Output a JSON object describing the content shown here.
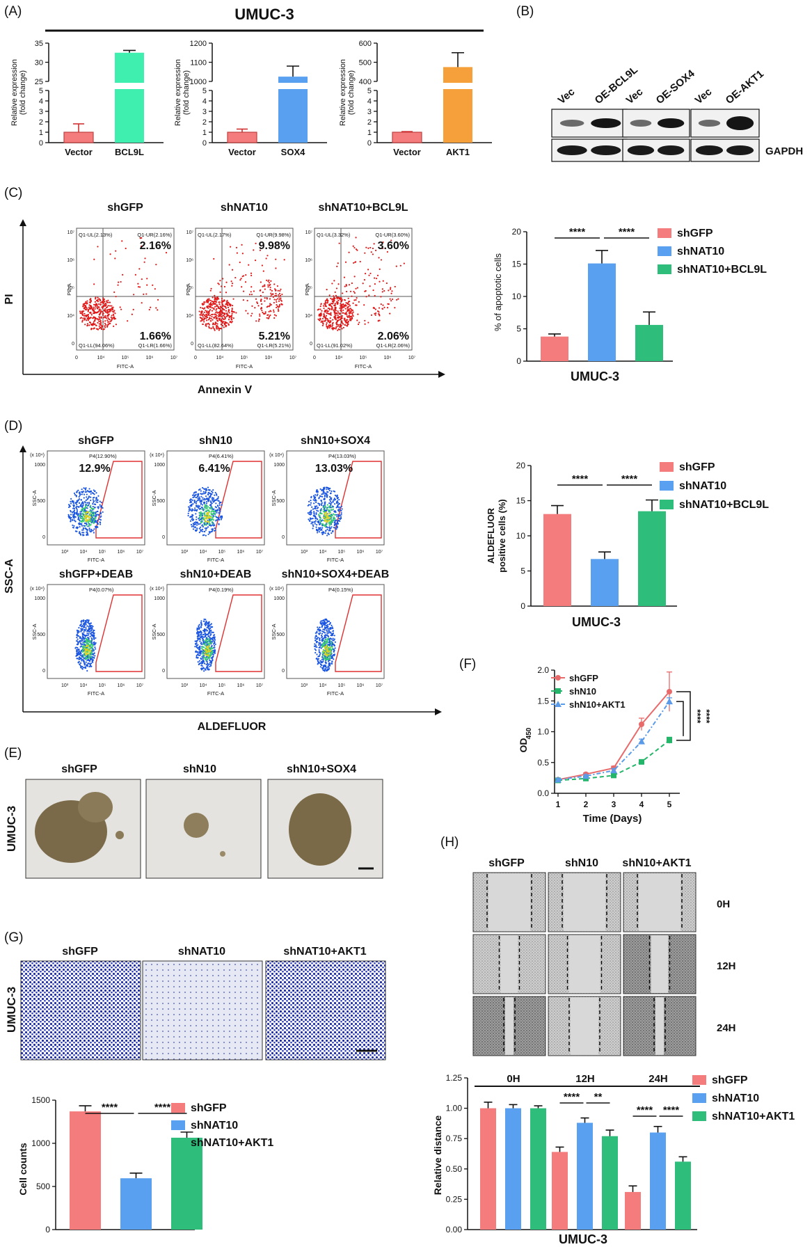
{
  "panels": {
    "A": "(A)",
    "B": "(B)",
    "C": "(C)",
    "D": "(D)",
    "E": "(E)",
    "F": "(F)",
    "G": "(G)",
    "H": "(H)"
  },
  "colors": {
    "red": "#f47c7c",
    "blue": "#5aa0f0",
    "green": "#2ebd7a",
    "mint": "#3fefb0",
    "orange": "#f5a03a",
    "dotred": "#e01818",
    "dotblue": "#1a55e0"
  },
  "panelA": {
    "title": "UMUC-3",
    "ylabel": "Relative expression\n(fold change)"
  },
  "panelB": {
    "labels": [
      "Vec",
      "OE-BCL9L",
      "Vec",
      "OE-SOX4",
      "Vec",
      "OE-AKT1"
    ],
    "gapdh": "GAPDH"
  },
  "panelC": {
    "samples": [
      "shGFP",
      "shNAT10",
      "shNAT10+BCL9L"
    ],
    "ur": [
      "2.16%",
      "9.98%",
      "3.60%"
    ],
    "lr": [
      "1.66%",
      "5.21%",
      "2.06%"
    ],
    "small_ul": [
      "Q1-UL(2.13%)",
      "Q1-UL(2.17%)",
      "Q1-UL(3.32%)"
    ],
    "small_ur": [
      "Q1-UR(2.16%)",
      "Q1-UR(9.98%)",
      "Q1-UR(3.60%)"
    ],
    "small_ll": [
      "Q1-LL(94.06%)",
      "Q1-LL(82.64%)",
      "Q1-LL(91.02%)"
    ],
    "small_lr": [
      "Q1-LR(1.66%)",
      "Q1-LR(5.21%)",
      "Q1-LR(2.06%)"
    ],
    "xaxis": "FITC-A",
    "yaxis": "PE-A",
    "xlabel": "Annexin V",
    "ylabel": "PI"
  },
  "panelD": {
    "top": [
      "shGFP",
      "shN10",
      "shN10+SOX4"
    ],
    "top_pct": [
      "12.9%",
      "6.41%",
      "13.03%"
    ],
    "top_small": [
      "P4(12.90%)",
      "P4(6.41%)",
      "P4(13.03%)"
    ],
    "bottom": [
      "shGFP+DEAB",
      "shN10+DEAB",
      "shN10+SOX4+DEAB"
    ],
    "bottom_small": [
      "P4(0.07%)",
      "P4(0.19%)",
      "P4(0.15%)"
    ],
    "xaxis": "FITC-A",
    "yaxis": "SSC-A",
    "exp": "(x 10⁴)",
    "xlabel": "ALDEFLUOR",
    "ylabel": "SSC-A"
  },
  "panelE": {
    "samples": [
      "shGFP",
      "shN10",
      "shN10+SOX4"
    ],
    "side": "UMUC-3"
  },
  "panelG": {
    "samples": [
      "shGFP",
      "shNAT10",
      "shNAT10+AKT1"
    ],
    "side": "UMUC-3"
  },
  "panelH": {
    "samples": [
      "shGFP",
      "shN10",
      "shN10+AKT1"
    ],
    "times": [
      "0H",
      "12H",
      "24H"
    ]
  },
  "chart_data": [
    {
      "id": "A1",
      "type": "bar",
      "categories": [
        "Vector",
        "BCL9L"
      ],
      "values": [
        1.0,
        32.5
      ],
      "errors": [
        0.8,
        0.6
      ],
      "ylabel": "Relative expression (fold change)",
      "broken_axis": true,
      "upper_ticks": [
        "25",
        "30",
        "35"
      ],
      "lower_ticks": [
        "0",
        "1",
        "2",
        "3",
        "4",
        "5"
      ],
      "colors": [
        "#f47c7c",
        "#3fefb0"
      ]
    },
    {
      "id": "A2",
      "type": "bar",
      "categories": [
        "Vector",
        "SOX4"
      ],
      "values": [
        1.0,
        1025
      ],
      "errors": [
        0.3,
        55
      ],
      "ylabel": "Relative expression (fold change)",
      "broken_axis": true,
      "upper_ticks": [
        "1000",
        "1100",
        "1200"
      ],
      "lower_ticks": [
        "0",
        "1",
        "2",
        "3",
        "4",
        "5"
      ],
      "colors": [
        "#f47c7c",
        "#5aa0f0"
      ]
    },
    {
      "id": "A3",
      "type": "bar",
      "categories": [
        "Vector",
        "AKT1"
      ],
      "values": [
        1.0,
        475
      ],
      "errors": [
        0.06,
        75
      ],
      "ylabel": "Relative expression (fold change)",
      "broken_axis": true,
      "upper_ticks": [
        "400",
        "500",
        "600"
      ],
      "lower_ticks": [
        "0",
        "1",
        "2",
        "3",
        "4",
        "5"
      ],
      "colors": [
        "#f47c7c",
        "#f5a03a"
      ]
    },
    {
      "id": "C",
      "type": "bar",
      "categories": [
        "shGFP",
        "shNAT10",
        "shNAT10+BCL9L"
      ],
      "values": [
        3.8,
        15.1,
        5.6
      ],
      "errors": [
        0.4,
        2.0,
        2.0
      ],
      "ylabel": "% of apoptotic cells",
      "xlabel": "UMUC-3",
      "ylim": [
        0,
        20
      ],
      "ticks": [
        0,
        5,
        10,
        15,
        20
      ],
      "series_names": [
        "shGFP",
        "shNAT10",
        "shNAT10+BCL9L"
      ],
      "sig": [
        "****",
        "****"
      ]
    },
    {
      "id": "D",
      "type": "bar",
      "categories": [
        "shGFP",
        "shNAT10",
        "shNAT10+BCL9L"
      ],
      "values": [
        13.1,
        6.7,
        13.5
      ],
      "errors": [
        1.2,
        1.0,
        1.6
      ],
      "ylabel": "ALDEFLUOR positive cells (%)",
      "xlabel": "UMUC-3",
      "ylim": [
        0,
        20
      ],
      "ticks": [
        0,
        5,
        10,
        15,
        20
      ],
      "series_names": [
        "shGFP",
        "shNAT10",
        "shNAT10+BCL9L"
      ],
      "sig": [
        "****",
        "****"
      ]
    },
    {
      "id": "F",
      "type": "line",
      "x": [
        1,
        2,
        3,
        4,
        5
      ],
      "series": [
        {
          "name": "shGFP",
          "values": [
            0.22,
            0.31,
            0.41,
            1.12,
            1.65
          ],
          "errors": [
            0.02,
            0.02,
            0.03,
            0.1,
            0.32
          ]
        },
        {
          "name": "shN10",
          "values": [
            0.21,
            0.24,
            0.29,
            0.51,
            0.86
          ],
          "errors": [
            0.02,
            0.02,
            0.02,
            0.03,
            0.05
          ]
        },
        {
          "name": "shN10+AKT1",
          "values": [
            0.22,
            0.28,
            0.37,
            0.84,
            1.49
          ],
          "errors": [
            0.02,
            0.02,
            0.03,
            0.04,
            0.06
          ]
        }
      ],
      "xlabel": "Time (Days)",
      "ylabel": "OD450",
      "ylim": [
        0,
        2.0
      ],
      "ticks": [
        0,
        0.5,
        1.0,
        1.5,
        2.0
      ],
      "tick_labels": [
        "0.0",
        "0.5",
        "1.0",
        "1.5",
        "2.0"
      ],
      "sig": [
        "****",
        "****"
      ]
    },
    {
      "id": "G",
      "type": "bar",
      "categories": [
        "shGFP",
        "shNAT10",
        "shNAT10+AKT1"
      ],
      "values": [
        1370,
        595,
        1065
      ],
      "errors": [
        65,
        60,
        65
      ],
      "ylabel": "Cell counts",
      "ylim": [
        0,
        1500
      ],
      "ticks": [
        0,
        500,
        1000,
        1500
      ],
      "series_names": [
        "shGFP",
        "shNAT10",
        "shNAT10+AKT1"
      ],
      "sig": [
        "****",
        "****"
      ]
    },
    {
      "id": "H",
      "type": "bar",
      "groups": [
        "0H",
        "12H",
        "24H"
      ],
      "series": [
        {
          "name": "shGFP",
          "values": [
            1.0,
            0.64,
            0.31
          ],
          "errors": [
            0.05,
            0.04,
            0.05
          ]
        },
        {
          "name": "shNAT10",
          "values": [
            1.0,
            0.88,
            0.8
          ],
          "errors": [
            0.03,
            0.04,
            0.05
          ]
        },
        {
          "name": "shNAT10+AKT1",
          "values": [
            1.0,
            0.77,
            0.56
          ],
          "errors": [
            0.02,
            0.05,
            0.04
          ]
        }
      ],
      "ylabel": "Relative distance",
      "xlabel": "UMUC-3",
      "ylim": [
        0,
        1.25
      ],
      "ticks": [
        0,
        0.25,
        0.5,
        0.75,
        1.0,
        1.25
      ],
      "tick_labels": [
        "0.00",
        "0.25",
        "0.50",
        "0.75",
        "1.00",
        "1.25"
      ],
      "sig": [
        [
          "****",
          "**"
        ],
        [
          "****",
          "****"
        ]
      ]
    }
  ]
}
